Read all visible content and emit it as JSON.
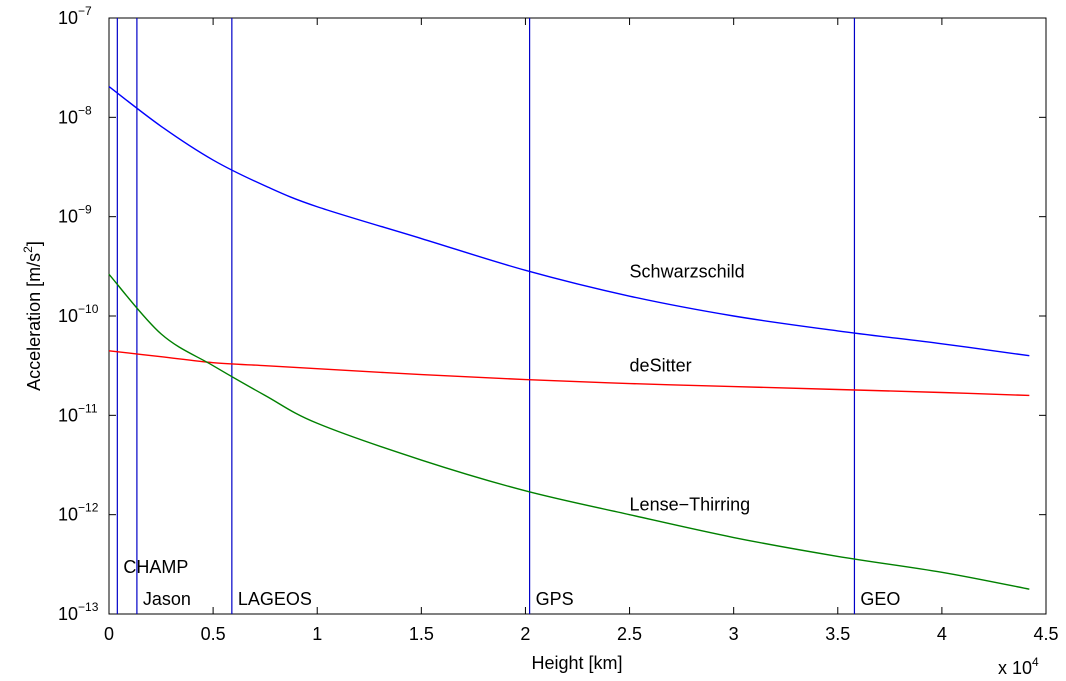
{
  "chart_data": {
    "type": "line",
    "title": "",
    "xlabel": "Height [km]",
    "ylabel_main": "Acceleration [m/s",
    "ylabel_sup": "2",
    "ylabel_tail": "]",
    "x_scale_label": {
      "prefix": "x 10",
      "exponent": "4"
    },
    "xlim": [
      0,
      4.5
    ],
    "ylim_log10": [
      -13,
      -7
    ],
    "y_scale": "log",
    "grid": false,
    "xticks": [
      {
        "value": 0,
        "label": "0"
      },
      {
        "value": 0.5,
        "label": "0.5"
      },
      {
        "value": 1,
        "label": "1"
      },
      {
        "value": 1.5,
        "label": "1.5"
      },
      {
        "value": 2,
        "label": "2"
      },
      {
        "value": 2.5,
        "label": "2.5"
      },
      {
        "value": 3,
        "label": "3"
      },
      {
        "value": 3.5,
        "label": "3.5"
      },
      {
        "value": 4,
        "label": "4"
      },
      {
        "value": 4.5,
        "label": "4.5"
      }
    ],
    "yticks": [
      {
        "exp": -13,
        "base": "10",
        "sup": "−13"
      },
      {
        "exp": -12,
        "base": "10",
        "sup": "−12"
      },
      {
        "exp": -11,
        "base": "10",
        "sup": "−11"
      },
      {
        "exp": -10,
        "base": "10",
        "sup": "−10"
      },
      {
        "exp": -9,
        "base": "10",
        "sup": "−9"
      },
      {
        "exp": -8,
        "base": "10",
        "sup": "−8"
      },
      {
        "exp": -7,
        "base": "10",
        "sup": "−7"
      }
    ],
    "series": [
      {
        "name": "Schwarzschild",
        "color": "#0000ff",
        "label_position": {
          "x": 2.5,
          "log10_y": -9.55
        },
        "x": [
          0,
          0.25,
          0.5,
          0.75,
          1.0,
          1.5,
          2.0,
          2.5,
          3.0,
          3.5,
          4.0,
          4.42
        ],
        "log10_y": [
          -7.69,
          -8.09,
          -8.43,
          -8.69,
          -8.9,
          -9.22,
          -9.54,
          -9.8,
          -10.0,
          -10.15,
          -10.28,
          -10.4
        ]
      },
      {
        "name": "deSitter",
        "color": "#ff0000",
        "label_position": {
          "x": 2.5,
          "log10_y": -10.5
        },
        "x": [
          0,
          0.25,
          0.5,
          0.75,
          1.0,
          1.5,
          2.0,
          2.5,
          3.0,
          3.5,
          4.0,
          4.42
        ],
        "log10_y": [
          -10.35,
          -10.41,
          -10.47,
          -10.5,
          -10.53,
          -10.59,
          -10.64,
          -10.68,
          -10.71,
          -10.74,
          -10.77,
          -10.8
        ]
      },
      {
        "name": "Lense−Thirring",
        "color": "#008000",
        "label_position": {
          "x": 2.5,
          "log10_y": -11.9
        },
        "x": [
          0,
          0.25,
          0.5,
          0.75,
          1.0,
          1.5,
          2.0,
          2.5,
          3.0,
          3.5,
          4.0,
          4.42
        ],
        "log10_y": [
          -9.58,
          -10.18,
          -10.5,
          -10.8,
          -11.08,
          -11.45,
          -11.76,
          -12.0,
          -12.23,
          -12.42,
          -12.58,
          -12.75
        ]
      }
    ],
    "orbit_markers": [
      {
        "name": "CHAMP",
        "x": 0.04,
        "label_level": 1
      },
      {
        "name": "Jason",
        "x": 0.134,
        "label_level": 0
      },
      {
        "name": "LAGEOS",
        "x": 0.59,
        "label_level": 0
      },
      {
        "name": "GPS",
        "x": 2.02,
        "label_level": 0
      },
      {
        "name": "GEO",
        "x": 3.58,
        "label_level": 0
      }
    ],
    "orbit_marker_color": "#0000c8"
  }
}
